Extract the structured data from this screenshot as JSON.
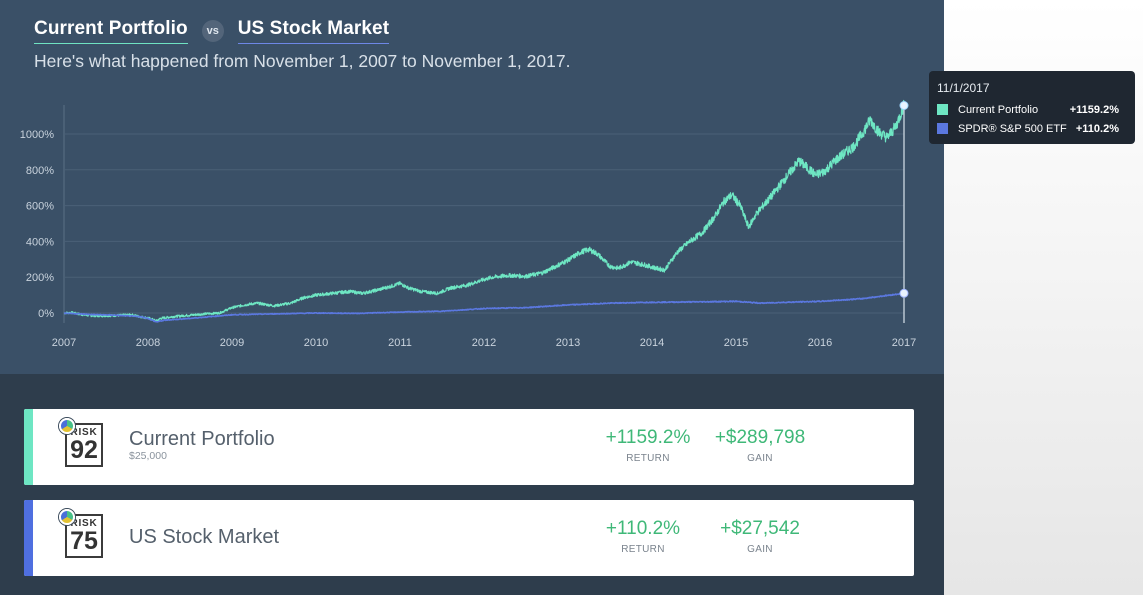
{
  "header": {
    "portfolio_link": "Current Portfolio",
    "vs_label": "vs",
    "market_link": "US Stock Market",
    "subtitle": "Here's what happened from November 1, 2007 to November 1, 2017."
  },
  "tooltip": {
    "date": "11/1/2017",
    "rows": [
      {
        "label": "Current Portfolio",
        "value": "+1159.2%",
        "color": "#6ee6c3"
      },
      {
        "label": "SPDR® S&P 500 ETF",
        "value": "+110.2%",
        "color": "#5b78e0"
      }
    ]
  },
  "cards": [
    {
      "name": "Current Portfolio",
      "amount": "$25,000",
      "risk_label": "RISK",
      "risk_score": "92",
      "stripe_color": "#6ee6c3",
      "return_value": "+1159.2%",
      "return_label": "RETURN",
      "gain_value": "+$289,798",
      "gain_label": "GAIN"
    },
    {
      "name": "US Stock Market",
      "amount": "",
      "risk_label": "RISK",
      "risk_score": "75",
      "stripe_color": "#4f6fe0",
      "return_value": "+110.2%",
      "return_label": "RETURN",
      "gain_value": "+$27,542",
      "gain_label": "GAIN"
    }
  ],
  "chart_data": {
    "type": "line",
    "x_ticks": [
      "2007",
      "2008",
      "2009",
      "2010",
      "2011",
      "2012",
      "2013",
      "2014",
      "2015",
      "2016",
      "2017"
    ],
    "y_ticks": [
      "0%",
      "200%",
      "400%",
      "600%",
      "800%",
      "1000%"
    ],
    "y_tick_values": [
      0,
      200,
      400,
      600,
      800,
      1000
    ],
    "ylim": [
      -60,
      1160
    ],
    "xlim": [
      2007.0,
      2017.0
    ],
    "grid": true,
    "series": [
      {
        "name": "Current Portfolio",
        "color": "#6ee6c3",
        "points": [
          [
            2007.0,
            0
          ],
          [
            2007.1,
            2
          ],
          [
            2007.2,
            -8
          ],
          [
            2007.3,
            -14
          ],
          [
            2007.4,
            -16
          ],
          [
            2007.6,
            -14
          ],
          [
            2007.8,
            -10
          ],
          [
            2007.9,
            -20
          ],
          [
            2008.0,
            -28
          ],
          [
            2008.1,
            -45
          ],
          [
            2008.15,
            -30
          ],
          [
            2008.3,
            -20
          ],
          [
            2008.5,
            -12
          ],
          [
            2008.7,
            -4
          ],
          [
            2008.85,
            0
          ],
          [
            2009.0,
            30
          ],
          [
            2009.15,
            45
          ],
          [
            2009.3,
            55
          ],
          [
            2009.5,
            40
          ],
          [
            2009.7,
            55
          ],
          [
            2009.85,
            85
          ],
          [
            2010.0,
            100
          ],
          [
            2010.2,
            110
          ],
          [
            2010.4,
            120
          ],
          [
            2010.55,
            110
          ],
          [
            2010.7,
            125
          ],
          [
            2010.9,
            150
          ],
          [
            2011.0,
            165
          ],
          [
            2011.1,
            140
          ],
          [
            2011.25,
            120
          ],
          [
            2011.45,
            110
          ],
          [
            2011.6,
            140
          ],
          [
            2011.8,
            155
          ],
          [
            2011.95,
            180
          ],
          [
            2012.1,
            200
          ],
          [
            2012.3,
            210
          ],
          [
            2012.5,
            205
          ],
          [
            2012.7,
            225
          ],
          [
            2012.85,
            260
          ],
          [
            2013.0,
            295
          ],
          [
            2013.15,
            340
          ],
          [
            2013.25,
            355
          ],
          [
            2013.35,
            330
          ],
          [
            2013.5,
            260
          ],
          [
            2013.6,
            250
          ],
          [
            2013.75,
            285
          ],
          [
            2013.9,
            270
          ],
          [
            2014.05,
            250
          ],
          [
            2014.15,
            240
          ],
          [
            2014.3,
            340
          ],
          [
            2014.45,
            400
          ],
          [
            2014.6,
            450
          ],
          [
            2014.75,
            540
          ],
          [
            2014.85,
            620
          ],
          [
            2014.95,
            660
          ],
          [
            2015.05,
            600
          ],
          [
            2015.15,
            480
          ],
          [
            2015.25,
            560
          ],
          [
            2015.4,
            640
          ],
          [
            2015.6,
            760
          ],
          [
            2015.75,
            850
          ],
          [
            2015.85,
            810
          ],
          [
            2015.95,
            770
          ],
          [
            2016.05,
            790
          ],
          [
            2016.2,
            860
          ],
          [
            2016.4,
            930
          ],
          [
            2016.5,
            1000
          ],
          [
            2016.6,
            1080
          ],
          [
            2016.7,
            1010
          ],
          [
            2016.8,
            980
          ],
          [
            2016.9,
            1040
          ],
          [
            2017.0,
            1159.2
          ]
        ]
      },
      {
        "name": "SPDR® S&P 500 ETF",
        "color": "#5b78e0",
        "points": [
          [
            2007.0,
            0
          ],
          [
            2007.3,
            -8
          ],
          [
            2007.6,
            -12
          ],
          [
            2007.9,
            -20
          ],
          [
            2008.0,
            -30
          ],
          [
            2008.1,
            -50
          ],
          [
            2008.2,
            -40
          ],
          [
            2008.5,
            -30
          ],
          [
            2008.8,
            -18
          ],
          [
            2009.0,
            -10
          ],
          [
            2009.5,
            -5
          ],
          [
            2010.0,
            0
          ],
          [
            2010.5,
            -2
          ],
          [
            2011.0,
            5
          ],
          [
            2011.5,
            10
          ],
          [
            2012.0,
            25
          ],
          [
            2012.5,
            30
          ],
          [
            2013.0,
            45
          ],
          [
            2013.5,
            55
          ],
          [
            2014.0,
            60
          ],
          [
            2014.5,
            62
          ],
          [
            2015.0,
            65
          ],
          [
            2015.3,
            55
          ],
          [
            2015.6,
            60
          ],
          [
            2016.0,
            65
          ],
          [
            2016.5,
            80
          ],
          [
            2017.0,
            110.2
          ]
        ]
      }
    ]
  }
}
